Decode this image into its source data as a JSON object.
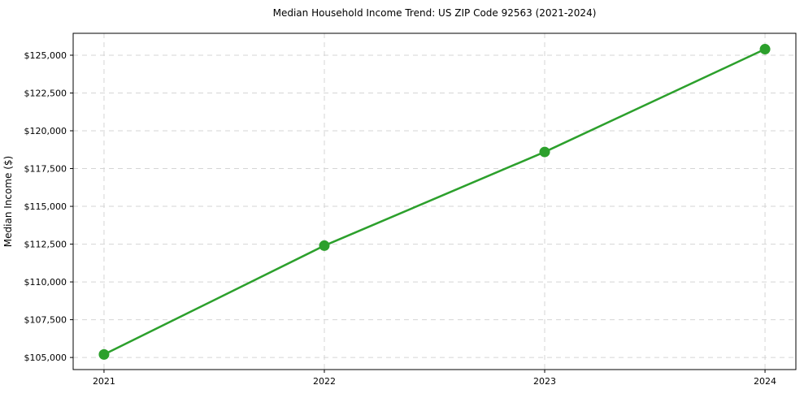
{
  "chart_data": {
    "type": "line",
    "title": "Median Household Income Trend: US ZIP Code 92563 (2021-2024)",
    "xlabel": "",
    "ylabel": "Median Income ($)",
    "x": [
      2021,
      2022,
      2023,
      2024
    ],
    "series": [
      {
        "name": "Median Household Income",
        "values": [
          105200,
          112400,
          118600,
          125400
        ],
        "color": "#2ca02c",
        "marker": "circle"
      }
    ],
    "xticks": [
      {
        "value": 2021,
        "label": "2021"
      },
      {
        "value": 2022,
        "label": "2022"
      },
      {
        "value": 2023,
        "label": "2023"
      },
      {
        "value": 2024,
        "label": "2024"
      }
    ],
    "yticks": [
      {
        "value": 105000,
        "label": "$105,000"
      },
      {
        "value": 107500,
        "label": "$107,500"
      },
      {
        "value": 110000,
        "label": "$110,000"
      },
      {
        "value": 112500,
        "label": "$112,500"
      },
      {
        "value": 115000,
        "label": "$115,000"
      },
      {
        "value": 117500,
        "label": "$117,500"
      },
      {
        "value": 120000,
        "label": "$120,000"
      },
      {
        "value": 122500,
        "label": "$122,500"
      },
      {
        "value": 125000,
        "label": "$125,000"
      }
    ],
    "xlim": [
      2020.86,
      2024.14
    ],
    "ylim": [
      104200,
      126450
    ],
    "grid": true,
    "grid_style": "dashed",
    "legend": "none",
    "colors": {
      "line": "#2ca02c",
      "grid": "#d5d5d5",
      "frame": "#000000",
      "text": "#000000",
      "background": "#ffffff"
    }
  }
}
